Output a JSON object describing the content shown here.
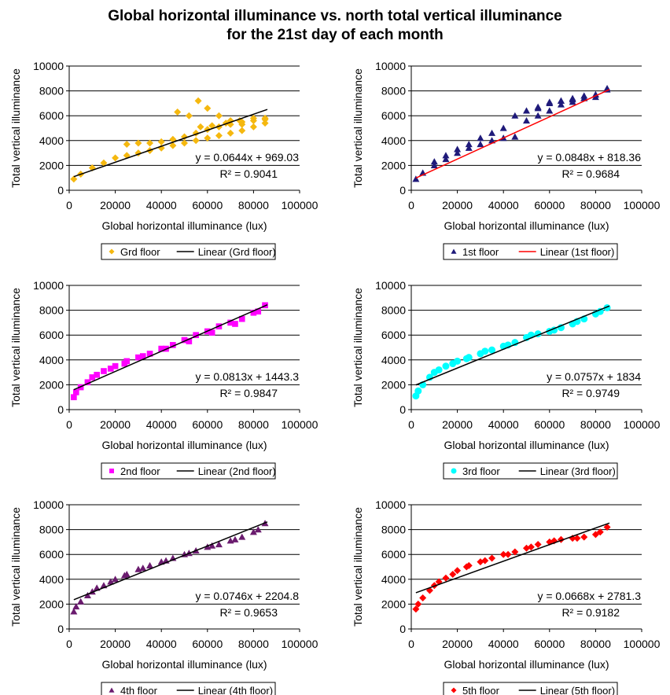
{
  "title_line1": "Global horizontal illuminance vs. north total vertical illuminance",
  "title_line2": "for the 21st day of each month",
  "chart_data": [
    {
      "type": "scatter",
      "xlabel": "Global horizontal illuminance (lux)",
      "ylabel": "Total vertical illuminance",
      "xlim": [
        0,
        100000
      ],
      "ylim": [
        0,
        10000
      ],
      "xticks": [
        "0",
        "20000",
        "40000",
        "60000",
        "80000",
        "100000"
      ],
      "yticks": [
        "0",
        "2000",
        "4000",
        "6000",
        "8000",
        "10000"
      ],
      "grid": "horizontal",
      "legend": "bottom",
      "series": [
        {
          "name": "Grd floor",
          "color": "#F5B80F",
          "marker": "diamond",
          "x": [
            2000,
            5000,
            10000,
            15000,
            20000,
            25000,
            30000,
            35000,
            40000,
            45000,
            50000,
            55000,
            60000,
            65000,
            70000,
            75000,
            80000,
            85000,
            25000,
            30000,
            35000,
            40000,
            45000,
            50000,
            55000,
            60000,
            65000,
            70000,
            75000,
            80000,
            85000,
            47000,
            52000,
            56000,
            60000,
            65000,
            70000,
            75000,
            57000,
            62000,
            68000,
            74000,
            80000,
            85000
          ],
          "y": [
            900,
            1300,
            1800,
            2200,
            2600,
            2800,
            3000,
            3200,
            3400,
            3600,
            3800,
            4000,
            4200,
            4400,
            4600,
            4800,
            5100,
            5400,
            3700,
            3800,
            3800,
            3900,
            4100,
            4300,
            4600,
            4900,
            5100,
            5300,
            5500,
            5600,
            5700,
            6300,
            6000,
            7200,
            6600,
            6000,
            5600,
            5300,
            5100,
            5200,
            5400,
            5600,
            5800,
            5800
          ]
        },
        {
          "name": "Linear (Grd floor)",
          "color": "#000000",
          "marker": "line",
          "slope": 0.0644,
          "intercept": 969.03,
          "x_range": [
            2000,
            86000
          ]
        }
      ],
      "annotations": [
        "y = 0.0644x + 969.03",
        "R² = 0.9041"
      ]
    },
    {
      "type": "scatter",
      "xlabel": "Global horizontal illuminance (lux)",
      "ylabel": "Total vertical illuminance",
      "xlim": [
        0,
        100000
      ],
      "ylim": [
        0,
        10000
      ],
      "xticks": [
        "0",
        "20000",
        "40000",
        "60000",
        "80000",
        "100000"
      ],
      "yticks": [
        "0",
        "2000",
        "4000",
        "6000",
        "8000",
        "10000"
      ],
      "grid": "horizontal",
      "legend": "bottom",
      "series": [
        {
          "name": "1st floor",
          "color": "#1F1A7A",
          "marker": "triangle",
          "x": [
            2000,
            5000,
            10000,
            15000,
            20000,
            25000,
            30000,
            35000,
            40000,
            45000,
            45000,
            50000,
            55000,
            60000,
            65000,
            70000,
            75000,
            80000,
            85000,
            10000,
            15000,
            20000,
            25000,
            30000,
            35000,
            40000,
            50000,
            55000,
            60000,
            65000,
            70000,
            75000,
            80000,
            85000,
            55000,
            60000,
            65000,
            70000,
            75000,
            80000
          ],
          "y": [
            900,
            1400,
            2000,
            2500,
            3000,
            3400,
            3700,
            4000,
            4200,
            4300,
            6000,
            6400,
            6700,
            7000,
            7200,
            7400,
            7600,
            7700,
            8200,
            2300,
            2800,
            3300,
            3700,
            4200,
            4600,
            5000,
            5600,
            6000,
            6400,
            6900,
            7100,
            7400,
            7700,
            8100,
            6600,
            7100,
            7200,
            7300,
            7400,
            7500
          ]
        },
        {
          "name": "Linear (1st floor)",
          "color": "#FF0000",
          "marker": "line",
          "slope": 0.0848,
          "intercept": 818.36,
          "x_range": [
            2000,
            86000
          ]
        }
      ],
      "annotations": [
        "y = 0.0848x + 818.36",
        "R² = 0.9684"
      ]
    },
    {
      "type": "scatter",
      "xlabel": "Global horizontal illuminance (lux)",
      "ylabel": "Total vertical illuminance",
      "xlim": [
        0,
        100000
      ],
      "ylim": [
        0,
        10000
      ],
      "xticks": [
        "0",
        "20000",
        "40000",
        "60000",
        "80000",
        "100000"
      ],
      "yticks": [
        "0",
        "2000",
        "4000",
        "6000",
        "8000",
        "10000"
      ],
      "grid": "horizontal",
      "legend": "bottom",
      "series": [
        {
          "name": "2nd floor",
          "color": "#FF00FF",
          "marker": "square",
          "x": [
            2000,
            3000,
            5000,
            8000,
            10000,
            15000,
            20000,
            25000,
            30000,
            35000,
            40000,
            45000,
            50000,
            55000,
            60000,
            65000,
            70000,
            75000,
            80000,
            85000,
            12000,
            18000,
            24000,
            32000,
            42000,
            52000,
            62000,
            72000,
            82000
          ],
          "y": [
            1000,
            1400,
            1800,
            2200,
            2600,
            3100,
            3500,
            3900,
            4200,
            4500,
            4900,
            5200,
            5600,
            6000,
            6300,
            6700,
            7000,
            7300,
            7800,
            8400,
            2800,
            3300,
            3700,
            4300,
            4900,
            5500,
            6200,
            6900,
            7900
          ]
        },
        {
          "name": "Linear (2nd floor)",
          "color": "#000000",
          "marker": "line",
          "slope": 0.0813,
          "intercept": 1443.3,
          "x_range": [
            2000,
            86000
          ]
        }
      ],
      "annotations": [
        "y = 0.0813x + 1443.3",
        "R² = 0.9847"
      ]
    },
    {
      "type": "scatter",
      "xlabel": "Global horizontal illuminance (lux)",
      "ylabel": "Total vertical illuminance",
      "xlim": [
        0,
        100000
      ],
      "ylim": [
        0,
        10000
      ],
      "xticks": [
        "0",
        "20000",
        "40000",
        "60000",
        "80000",
        "100000"
      ],
      "yticks": [
        "0",
        "2000",
        "4000",
        "6000",
        "8000",
        "10000"
      ],
      "grid": "horizontal",
      "legend": "bottom",
      "series": [
        {
          "name": "3rd floor",
          "color": "#00FFFF",
          "marker": "circle",
          "x": [
            2000,
            3000,
            5000,
            8000,
            10000,
            15000,
            20000,
            25000,
            30000,
            35000,
            40000,
            45000,
            50000,
            55000,
            60000,
            65000,
            70000,
            75000,
            80000,
            85000,
            12000,
            18000,
            24000,
            32000,
            42000,
            52000,
            62000,
            72000,
            82000
          ],
          "y": [
            1100,
            1500,
            2000,
            2600,
            3000,
            3500,
            3900,
            4200,
            4500,
            4800,
            5100,
            5400,
            5800,
            6100,
            6300,
            6600,
            6900,
            7300,
            7700,
            8200,
            3200,
            3700,
            4100,
            4700,
            5200,
            6000,
            6400,
            7100,
            7900
          ]
        },
        {
          "name": "Linear (3rd floor)",
          "color": "#000000",
          "marker": "line",
          "slope": 0.0757,
          "intercept": 1834,
          "x_range": [
            2000,
            86000
          ]
        }
      ],
      "annotations": [
        "y = 0.0757x + 1834",
        "R² = 0.9749"
      ]
    },
    {
      "type": "scatter",
      "xlabel": "Global horizontal illuminance (lux)",
      "ylabel": "Total vertical illuminance",
      "xlim": [
        0,
        100000
      ],
      "ylim": [
        0,
        10000
      ],
      "xticks": [
        "0",
        "20000",
        "40000",
        "60000",
        "80000",
        "100000"
      ],
      "yticks": [
        "0",
        "2000",
        "4000",
        "6000",
        "8000",
        "10000"
      ],
      "grid": "horizontal",
      "legend": "bottom",
      "series": [
        {
          "name": "4th floor",
          "color": "#6A1B6E",
          "marker": "triangle",
          "x": [
            2000,
            3000,
            5000,
            8000,
            10000,
            15000,
            20000,
            25000,
            30000,
            35000,
            40000,
            45000,
            50000,
            55000,
            60000,
            65000,
            70000,
            75000,
            80000,
            85000,
            12000,
            18000,
            24000,
            32000,
            42000,
            52000,
            62000,
            72000,
            82000
          ],
          "y": [
            1400,
            1800,
            2200,
            2700,
            3000,
            3500,
            4000,
            4400,
            4800,
            5100,
            5400,
            5700,
            6000,
            6300,
            6600,
            6800,
            7100,
            7400,
            7800,
            8500,
            3300,
            3800,
            4300,
            4900,
            5500,
            6100,
            6700,
            7200,
            8000
          ]
        },
        {
          "name": "Linear (4th floor)",
          "color": "#000000",
          "marker": "line",
          "slope": 0.0746,
          "intercept": 2204.8,
          "x_range": [
            2000,
            86000
          ]
        }
      ],
      "annotations": [
        "y = 0.0746x + 2204.8",
        "R² = 0.9653"
      ]
    },
    {
      "type": "scatter",
      "xlabel": "Global horizontal illuminance (lux)",
      "ylabel": "Total vertical illuminance",
      "xlim": [
        0,
        100000
      ],
      "ylim": [
        0,
        10000
      ],
      "xticks": [
        "0",
        "20000",
        "40000",
        "60000",
        "80000",
        "100000"
      ],
      "yticks": [
        "0",
        "2000",
        "4000",
        "6000",
        "8000",
        "10000"
      ],
      "grid": "horizontal",
      "legend": "bottom",
      "series": [
        {
          "name": "5th floor",
          "color": "#FF0000",
          "marker": "diamond",
          "x": [
            2000,
            3000,
            5000,
            8000,
            10000,
            15000,
            20000,
            25000,
            30000,
            35000,
            40000,
            45000,
            50000,
            55000,
            60000,
            65000,
            70000,
            75000,
            80000,
            85000,
            12000,
            18000,
            24000,
            32000,
            42000,
            52000,
            62000,
            72000,
            82000
          ],
          "y": [
            1600,
            2000,
            2500,
            3100,
            3500,
            4100,
            4700,
            5100,
            5400,
            5700,
            6000,
            6200,
            6500,
            6800,
            7000,
            7200,
            7300,
            7400,
            7600,
            8200,
            3800,
            4400,
            5000,
            5500,
            6000,
            6600,
            7100,
            7300,
            7800
          ]
        },
        {
          "name": "Linear (5th floor)",
          "color": "#000000",
          "marker": "line",
          "slope": 0.0668,
          "intercept": 2781.3,
          "x_range": [
            2000,
            86000
          ]
        }
      ],
      "annotations": [
        "y = 0.0668x + 2781.3",
        "R² = 0.9182"
      ]
    }
  ]
}
